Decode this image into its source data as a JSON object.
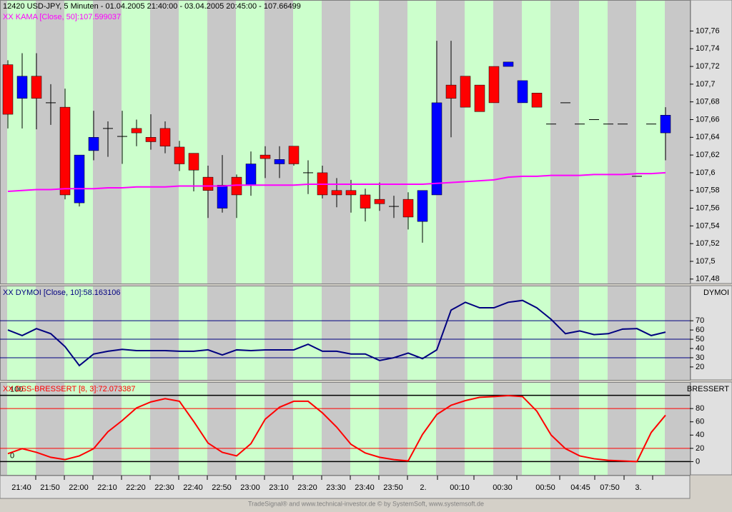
{
  "chart_data": [
    {
      "type": "candlestick",
      "title": "12420  USD-JPY, 5 Minuten - 01.04.2005 21:40:00 - 03.04.2005 20:45:00 - 107.66499",
      "up_color": "#0000ff",
      "down_color": "#ff0000",
      "open": [
        107.722,
        107.684,
        107.709,
        107.679,
        107.674,
        107.566,
        107.625,
        107.65,
        107.641,
        107.65,
        107.64,
        107.65,
        107.629,
        107.622,
        107.595,
        107.56,
        107.595,
        107.586,
        107.62,
        107.61,
        107.63,
        107.6,
        107.6,
        107.58,
        107.58,
        107.575,
        107.57,
        107.562,
        107.57,
        107.545,
        107.575,
        107.699,
        107.709,
        107.699,
        107.72,
        107.72,
        107.679,
        107.69,
        107.655,
        107.679,
        107.655,
        107.66,
        107.655,
        107.655,
        107.596,
        107.655,
        107.645
      ],
      "high": [
        107.727,
        107.735,
        107.735,
        107.7,
        107.695,
        107.62,
        107.67,
        107.658,
        107.67,
        107.66,
        107.666,
        107.658,
        107.636,
        107.622,
        107.608,
        107.62,
        107.598,
        107.624,
        107.63,
        107.63,
        107.63,
        107.614,
        107.608,
        107.594,
        107.592,
        107.582,
        107.589,
        107.574,
        107.578,
        107.58,
        107.749,
        107.749,
        107.709,
        107.699,
        107.72,
        107.725,
        107.704,
        107.69,
        107.655,
        107.679,
        107.655,
        107.66,
        107.655,
        107.655,
        107.596,
        107.655,
        107.674
      ],
      "low": [
        107.65,
        107.65,
        107.649,
        107.654,
        107.57,
        107.562,
        107.614,
        107.618,
        107.61,
        107.63,
        107.626,
        107.622,
        107.602,
        107.579,
        107.549,
        107.555,
        107.549,
        107.574,
        107.594,
        107.594,
        107.608,
        107.576,
        107.571,
        107.561,
        107.555,
        107.545,
        107.557,
        107.549,
        107.536,
        107.521,
        107.575,
        107.64,
        107.674,
        107.669,
        107.679,
        107.72,
        107.679,
        107.674,
        107.655,
        107.679,
        107.655,
        107.66,
        107.655,
        107.655,
        107.596,
        107.655,
        107.614
      ],
      "close": [
        107.666,
        107.709,
        107.684,
        107.679,
        107.575,
        107.62,
        107.64,
        107.65,
        107.641,
        107.645,
        107.635,
        107.63,
        107.61,
        107.603,
        107.58,
        107.586,
        107.575,
        107.61,
        107.616,
        107.615,
        107.61,
        107.6,
        107.575,
        107.575,
        107.575,
        107.56,
        107.565,
        107.562,
        107.55,
        107.58,
        107.679,
        107.684,
        107.674,
        107.669,
        107.679,
        107.725,
        107.704,
        107.674,
        107.655,
        107.679,
        107.655,
        107.66,
        107.655,
        107.655,
        107.596,
        107.655,
        107.665
      ],
      "series": [
        {
          "name": "XX KAMA [Close, 50]:107.599037",
          "color": "#ff00ff",
          "values": [
            107.579,
            107.58,
            107.581,
            107.581,
            107.582,
            107.582,
            107.582,
            107.583,
            107.583,
            107.584,
            107.584,
            107.584,
            107.585,
            107.585,
            107.585,
            107.585,
            107.586,
            107.586,
            107.586,
            107.586,
            107.586,
            107.587,
            107.587,
            107.587,
            107.587,
            107.587,
            107.587,
            107.587,
            107.587,
            107.587,
            107.588,
            107.589,
            107.59,
            107.591,
            107.592,
            107.595,
            107.596,
            107.596,
            107.597,
            107.597,
            107.597,
            107.598,
            107.598,
            107.598,
            107.599,
            107.599,
            107.6
          ]
        }
      ],
      "ylim": [
        107.475,
        107.795
      ],
      "yticks": [
        {
          "value": 107.48,
          "label": "107,48"
        },
        {
          "value": 107.5,
          "label": "107,5"
        },
        {
          "value": 107.52,
          "label": "107,52"
        },
        {
          "value": 107.54,
          "label": "107,54"
        },
        {
          "value": 107.56,
          "label": "107,56"
        },
        {
          "value": 107.58,
          "label": "107,58"
        },
        {
          "value": 107.6,
          "label": "107,6"
        },
        {
          "value": 107.62,
          "label": "107,62"
        },
        {
          "value": 107.64,
          "label": "107,64"
        },
        {
          "value": 107.66,
          "label": "107,66"
        },
        {
          "value": 107.68,
          "label": "107,68"
        },
        {
          "value": 107.7,
          "label": "107,7"
        },
        {
          "value": 107.72,
          "label": "107,72"
        },
        {
          "value": 107.74,
          "label": "107,74"
        },
        {
          "value": 107.76,
          "label": "107,76"
        }
      ]
    },
    {
      "type": "line",
      "panel_label": "DYMOI",
      "series": [
        {
          "name": "XX DYMOI [Close, 10]:58.163106",
          "color": "#000080",
          "values": [
            60,
            54,
            61.5,
            56,
            42,
            21.5,
            34,
            37,
            39,
            37.7,
            37.7,
            37.7,
            37,
            37,
            38.5,
            33,
            38.5,
            37.7,
            38.5,
            38.5,
            38.5,
            44.6,
            37,
            37,
            34,
            34,
            27,
            30,
            35,
            29,
            38.5,
            81.5,
            90,
            84,
            84,
            90,
            92,
            84,
            71.5,
            56,
            59,
            55,
            56,
            61,
            61.5,
            54,
            57.7
          ]
        }
      ],
      "hlines": [
        {
          "value": 70,
          "color": "#000080"
        },
        {
          "value": 50,
          "color": "#000080"
        },
        {
          "value": 30,
          "color": "#000080"
        }
      ],
      "ylim": [
        6,
        108
      ],
      "yticks": [
        20,
        30,
        40,
        50,
        60,
        70
      ]
    },
    {
      "type": "line",
      "panel_label": "BRESSERT",
      "series": [
        {
          "name": "XX DSS-BRESSERT [8, 3]:72.073387",
          "color": "#ff0000",
          "values": [
            12,
            19.5,
            14,
            6.5,
            3,
            8.6,
            19.5,
            45,
            62,
            81,
            90,
            95,
            91,
            60.5,
            28,
            14,
            8.6,
            27,
            64,
            82,
            91,
            91,
            73.5,
            52,
            26,
            13,
            6.5,
            3,
            1,
            41,
            71,
            85,
            92,
            97,
            98,
            99.5,
            98,
            76,
            40,
            19.5,
            8.6,
            4.3,
            2,
            1,
            0,
            44,
            70
          ]
        }
      ],
      "hlines": [
        {
          "value": 100,
          "color": "#000000",
          "printed": true
        },
        {
          "value": 80,
          "color": "#ff0000"
        },
        {
          "value": 20,
          "color": "#ff0000"
        },
        {
          "value": 0,
          "color": "#000000",
          "printed": true
        }
      ],
      "ylim": [
        -20,
        120
      ],
      "yticks": [
        0,
        20,
        40,
        60,
        80
      ]
    }
  ],
  "time_axis_labels": [
    "21:40",
    "21:50",
    "22:00",
    "22:10",
    "22:20",
    "22:30",
    "22:40",
    "22:50",
    "23:00",
    "23:10",
    "23:20",
    "23:30",
    "23:40",
    "23:50",
    "2.",
    "00:10",
    "00:30",
    "00:50",
    "04:45",
    "07:50",
    "3."
  ],
  "footer": "TradeSignal® and www.technical-investor.de © by SystemSoft, www.systemsoft.de"
}
